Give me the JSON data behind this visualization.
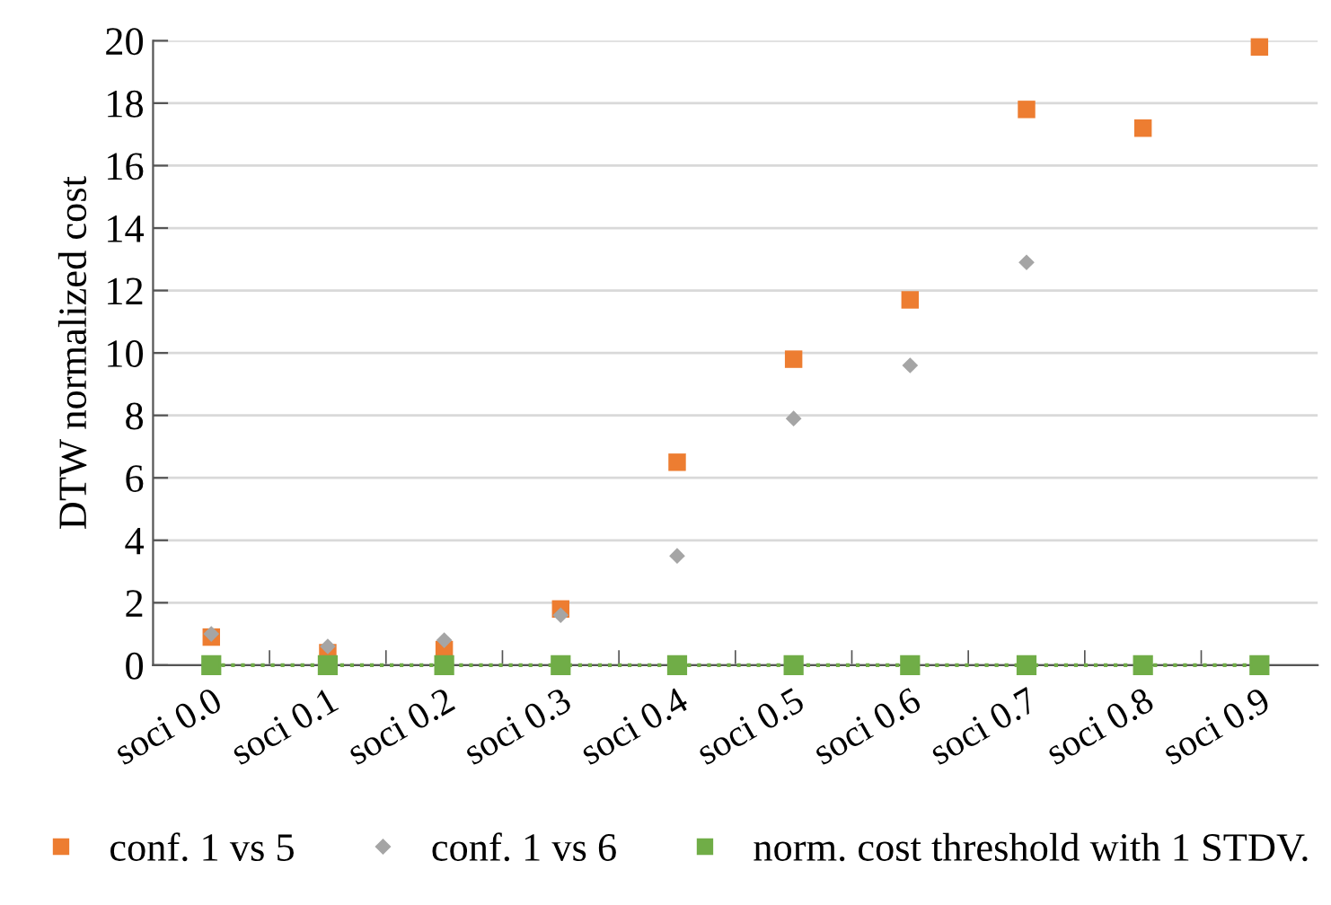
{
  "chart_data": {
    "type": "scatter",
    "ylabel": "DTW normalized cost",
    "categories": [
      "soci 0.0",
      "soci 0.1",
      "soci 0.2",
      "soci 0.3",
      "soci 0.4",
      "soci 0.5",
      "soci 0.6",
      "soci 0.7",
      "soci 0.8",
      "soci 0.9"
    ],
    "series": [
      {
        "name": "conf. 1 vs 5",
        "color": "#ed7d31",
        "marker": "square",
        "values": [
          0.9,
          0.4,
          0.5,
          1.8,
          6.5,
          9.8,
          11.7,
          17.8,
          17.2,
          19.8
        ]
      },
      {
        "name": "conf. 1 vs 6",
        "color": "#a5a5a5",
        "marker": "diamond",
        "values": [
          1.0,
          0.6,
          0.8,
          1.6,
          3.5,
          7.9,
          9.6,
          12.9,
          null,
          null
        ]
      },
      {
        "name": "norm. cost threshold with 1 STDV.",
        "color": "#70ad47",
        "type": "line",
        "marker": "square",
        "line_style": "dotted",
        "values": [
          0,
          0,
          0,
          0,
          0,
          0,
          0,
          0,
          0,
          0
        ]
      }
    ],
    "ylim": [
      0,
      20
    ],
    "yticks": [
      0,
      2,
      4,
      6,
      8,
      10,
      12,
      14,
      16,
      18,
      20
    ],
    "grid": "y",
    "legend": "bottom"
  }
}
